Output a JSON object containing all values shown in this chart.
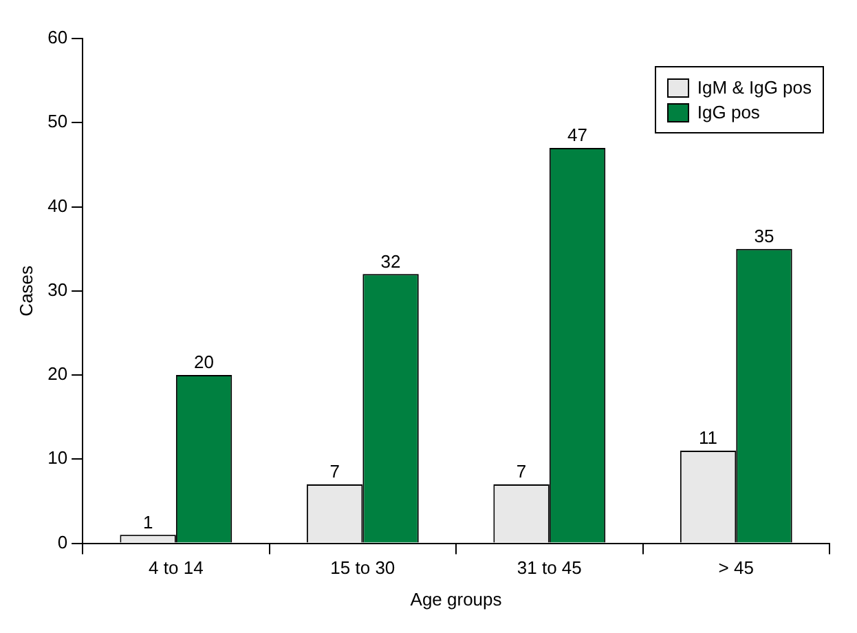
{
  "chart_data": {
    "type": "bar",
    "xlabel": "Age groups",
    "ylabel": "Cases",
    "categories": [
      "4 to 14",
      "15 to 30",
      "31 to 45",
      "> 45"
    ],
    "series": [
      {
        "name": "IgM & IgG pos",
        "color": "#e8e8e8",
        "values": [
          1,
          7,
          7,
          11
        ]
      },
      {
        "name": "IgG pos",
        "color": "#008040",
        "values": [
          20,
          32,
          47,
          35
        ]
      }
    ],
    "ylim": [
      0,
      60
    ],
    "yticks": [
      0,
      10,
      20,
      30,
      40,
      50,
      60
    ],
    "grid": false,
    "legend": "top right",
    "data_labels": true
  }
}
